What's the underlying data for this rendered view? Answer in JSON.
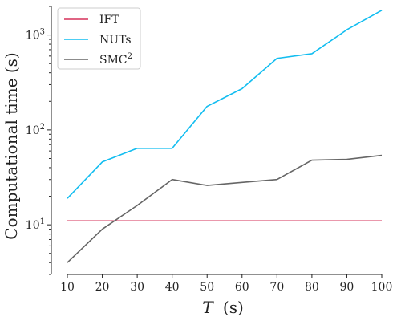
{
  "chart_data": {
    "type": "line",
    "xlabel_italic": "T",
    "xlabel_rest": "(s)",
    "ylabel": "Computational time (s)",
    "x": [
      10,
      20,
      30,
      40,
      50,
      60,
      70,
      80,
      90,
      100
    ],
    "xlim": [
      10,
      100
    ],
    "xticks": [
      10,
      20,
      30,
      40,
      50,
      60,
      70,
      80,
      90,
      100
    ],
    "yscale": "log",
    "ylim": [
      3.0,
      2000
    ],
    "yticks": [
      {
        "value": 10,
        "base": "10",
        "exp": "1"
      },
      {
        "value": 100,
        "base": "10",
        "exp": "2"
      },
      {
        "value": 1000,
        "base": "10",
        "exp": "3"
      }
    ],
    "grid": false,
    "legend_position": "top-left",
    "series": [
      {
        "name": "IFT",
        "color": "#d6305a",
        "values": [
          11,
          11,
          11,
          11,
          11,
          11,
          11,
          11,
          11,
          11
        ]
      },
      {
        "name": "NUTs",
        "color": "#12bdf0",
        "values": [
          19,
          46,
          64,
          64,
          177,
          272,
          567,
          635,
          1135,
          1820
        ]
      },
      {
        "name": "SMC",
        "name_sup": "2",
        "color": "#666666",
        "values": [
          4,
          9,
          16,
          30,
          26,
          28,
          30,
          48,
          49,
          54
        ]
      }
    ]
  }
}
